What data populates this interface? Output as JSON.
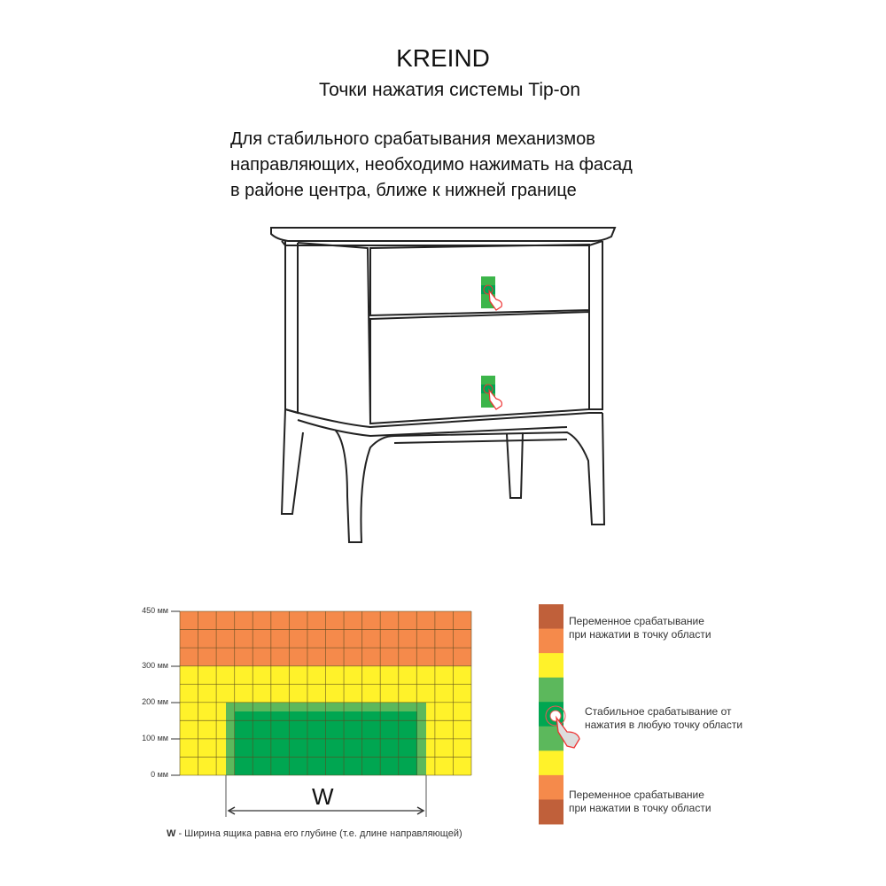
{
  "header": {
    "brand": "KREIND",
    "subtitle": "Точки нажатия системы Tip-on"
  },
  "description": {
    "lines": [
      "Для стабильного срабатывания механизмов",
      "направляющих, необходимо нажимать на фасад",
      "в районе центра, ближе к нижней границе"
    ]
  },
  "illustration": {
    "subject": "nightstand with two drawers",
    "press_marker_icon": "hand-press-icon",
    "press_zone_color": "#3cb54a"
  },
  "zone_diagram": {
    "y_ticks": [
      "450 мм",
      "300 мм",
      "200 мм",
      "100 мм",
      "0 мм"
    ],
    "dimension_label": "W",
    "note_bold": "W",
    "note_text": " - Ширина ящика равна его глубине (т.е. длине направляющей)",
    "colors": {
      "orange": "#f58a4b",
      "yellow": "#fff22a",
      "light_green": "#5cb85c",
      "dark_green": "#00a651",
      "brown": "#c0603a"
    }
  },
  "legend": {
    "variable_top": [
      "Переменное срабатывание",
      "при нажатии в точку области"
    ],
    "stable": [
      "Стабильное срабатывание от",
      "нажатия в любую точку области"
    ],
    "variable_bottom": [
      "Переменное срабатывание",
      "при нажатии в точку области"
    ]
  }
}
